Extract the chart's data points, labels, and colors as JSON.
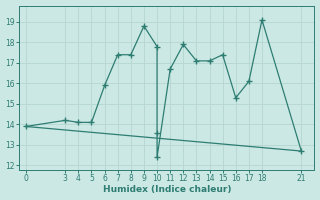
{
  "main_x": [
    0,
    3,
    4,
    5,
    6,
    7,
    8,
    9,
    10,
    10,
    10,
    11,
    12,
    13,
    14,
    15,
    16,
    17,
    18,
    21
  ],
  "main_y": [
    13.9,
    14.2,
    14.1,
    14.1,
    15.9,
    17.4,
    17.4,
    18.8,
    17.8,
    13.6,
    12.4,
    16.7,
    17.9,
    17.1,
    17.1,
    17.4,
    15.3,
    16.1,
    19.1,
    12.7
  ],
  "trend_x": [
    0,
    21
  ],
  "trend_y": [
    13.9,
    12.7
  ],
  "line_color": "#2e7d72",
  "bg_color": "#cce8e4",
  "grid_color": "#b8d8d4",
  "xlabel": "Humidex (Indice chaleur)",
  "xticks": [
    0,
    3,
    4,
    5,
    6,
    7,
    8,
    9,
    10,
    11,
    12,
    13,
    14,
    15,
    16,
    17,
    18,
    21
  ],
  "yticks": [
    12,
    13,
    14,
    15,
    16,
    17,
    18,
    19
  ],
  "xlim": [
    -0.5,
    22
  ],
  "ylim": [
    11.8,
    19.8
  ]
}
